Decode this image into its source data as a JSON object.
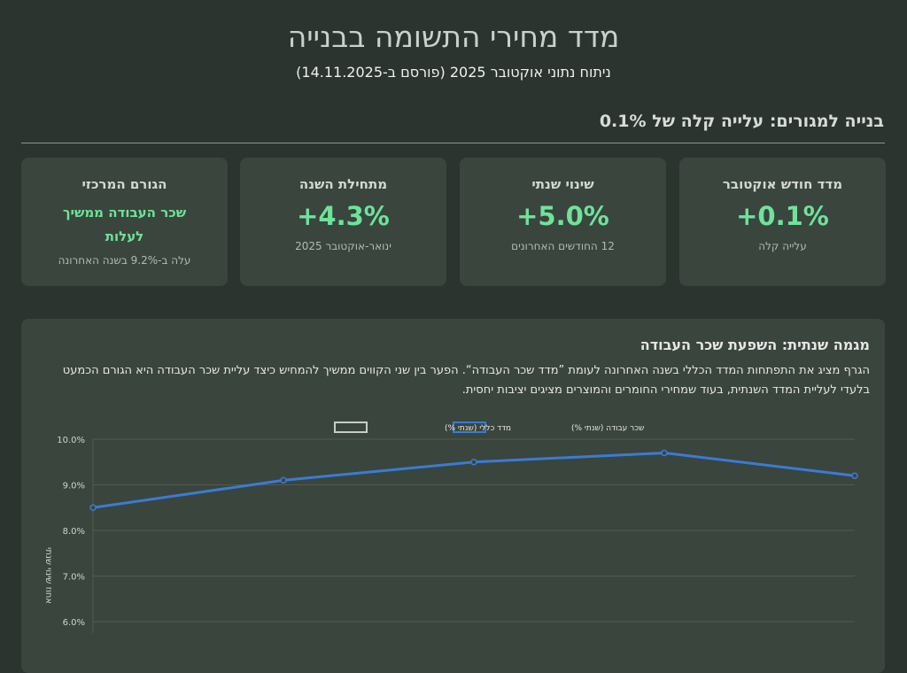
{
  "header": {
    "title": "מדד מחירי התשומה בבנייה",
    "subtitle": "ניתוח נתוני אוקטובר 2025 (פורסם ב-14.11.2025)"
  },
  "section": {
    "heading": "בנייה למגורים: עלייה קלה של 0.1%"
  },
  "cards": [
    {
      "title": "מדד חודש אוקטובר",
      "value": "+0.1%",
      "sub": "עלייה קלה"
    },
    {
      "title": "שינוי שנתי",
      "value": "+5.0%",
      "sub": "12 החודשים האחרונים"
    },
    {
      "title": "מתחילת השנה",
      "value": "+4.3%",
      "sub": "ינואר-אוקטובר 2025"
    },
    {
      "title": "הגורם המרכזי",
      "value": "שכר העבודה ממשיך לעלות",
      "sub": "עלה ב-9.2% בשנה האחרונה"
    }
  ],
  "panel": {
    "heading": "מגמה שנתית: השפעת שכר העבודה",
    "text": "הגרף מציג את התפתחות המדד הכללי בשנה האחרונה לעומת ”מדד שכר העבודה“. הפער בין שני הקווים ממשיך להמחיש כיצד עליית שכר העבודה היא הגורם הכמעט בלעדי לעליית המדד השנתית, בעוד שמחירי החומרים והמוצרים מציגים יציבות יחסית."
  },
  "colors": {
    "labor": "#3a7bd5",
    "general": "#c8ccc9",
    "accent": "#6ee39a"
  },
  "chart_data": {
    "type": "line",
    "ylabel": "אחוז שינוי שנתי",
    "ylim": [
      6,
      10
    ],
    "yticks": [
      "10.0%",
      "9.0%",
      "8.0%",
      "7.0%",
      "6.0%"
    ],
    "legend_position": "top",
    "grid": true,
    "series": [
      {
        "name": "שכר עבודה (שנתי %)",
        "values": [
          8.5,
          9.1,
          9.5,
          9.7,
          9.2
        ]
      },
      {
        "name": "מדד כללי (שנתי %)",
        "values": []
      }
    ]
  }
}
